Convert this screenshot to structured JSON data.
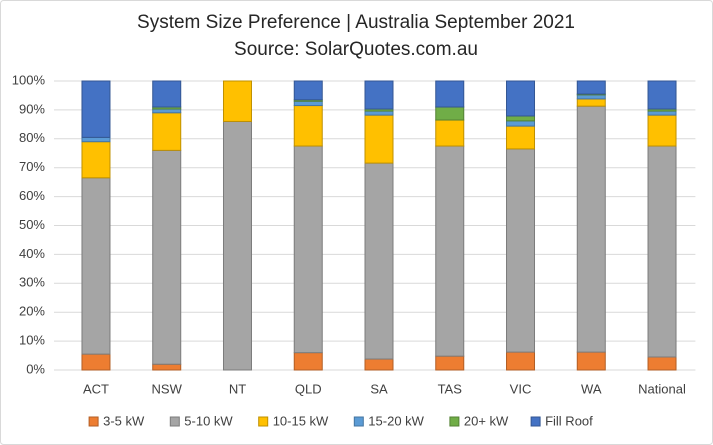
{
  "chart_data": {
    "type": "stacked_bar",
    "title": "System Size Preference  | Australia September 2021",
    "subtitle": "Source: SolarQuotes.com.au",
    "categories": [
      "ACT",
      "NSW",
      "NT",
      "QLD",
      "SA",
      "TAS",
      "VIC",
      "WA",
      "National"
    ],
    "series": [
      {
        "name": "3-5 kW",
        "color": "#ED7D31",
        "values": [
          5.5,
          2,
          0,
          6,
          3.8,
          4.8,
          6.2,
          6.2,
          4.5
        ]
      },
      {
        "name": "5-10 kW",
        "color": "#A5A5A5",
        "values": [
          61,
          74,
          86,
          71.5,
          67.8,
          72.7,
          70.3,
          85.1,
          73
        ]
      },
      {
        "name": "10-15 kW",
        "color": "#FFC000",
        "values": [
          12.5,
          13,
          14,
          14,
          16.6,
          9,
          7.9,
          2.5,
          10.7
        ]
      },
      {
        "name": "15-20 kW",
        "color": "#5B9BD5",
        "values": [
          1.5,
          1.3,
          0,
          1.5,
          1.4,
          0,
          1.8,
          1.4,
          1.4
        ]
      },
      {
        "name": "20+ kW",
        "color": "#70AD47",
        "values": [
          0,
          0.7,
          0,
          0.5,
          0.7,
          4.5,
          1.7,
          0.3,
          0.7
        ]
      },
      {
        "name": "Fill Roof",
        "color": "#4472C4",
        "values": [
          19.5,
          9,
          0,
          6.5,
          9.7,
          9,
          12.1,
          4.5,
          9.7
        ]
      }
    ],
    "ylim": [
      0,
      100
    ],
    "yticks": [
      {
        "value": 0,
        "label": "0%"
      },
      {
        "value": 10,
        "label": "10%"
      },
      {
        "value": 20,
        "label": "20%"
      },
      {
        "value": 30,
        "label": "30%"
      },
      {
        "value": 40,
        "label": "40%"
      },
      {
        "value": 50,
        "label": "50%"
      },
      {
        "value": 60,
        "label": "60%"
      },
      {
        "value": 70,
        "label": "70%"
      },
      {
        "value": 80,
        "label": "80%"
      },
      {
        "value": 90,
        "label": "90%"
      },
      {
        "value": 100,
        "label": "100%"
      }
    ],
    "grid": true
  }
}
